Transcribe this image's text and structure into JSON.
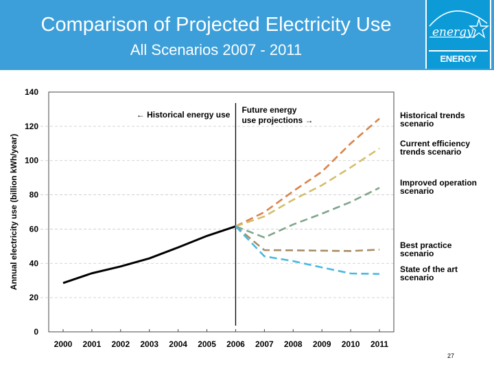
{
  "header": {
    "title": "Comparison of Projected Electricity Use",
    "subtitle": "All Scenarios 2007 - 2011",
    "logo": {
      "script_text": "energy",
      "label": "ENERGY STAR",
      "icon": "energy-star-logo"
    },
    "background_color": "#3d9fd9"
  },
  "page_number": "27",
  "chart_data": {
    "type": "line",
    "title": "",
    "xlabel": "",
    "ylabel": "Annual electricity use (billion kWh/year)",
    "x": [
      2000,
      2001,
      2002,
      2003,
      2004,
      2005,
      2006,
      2007,
      2008,
      2009,
      2010,
      2011
    ],
    "xlim": [
      2000,
      2011
    ],
    "ylim": [
      0,
      140
    ],
    "yticks": [
      0,
      20,
      40,
      60,
      80,
      100,
      120,
      140
    ],
    "xtick_labels": [
      "2000",
      "2001",
      "2002",
      "2003",
      "2004",
      "2005",
      "2006",
      "2007",
      "2008",
      "2009",
      "2010",
      "2011"
    ],
    "grid": "horizontal-dashed",
    "divider_year": 2006,
    "annotations": {
      "historical": "← Historical energy use",
      "future_line1": "Future energy",
      "future_line2": "use projections →"
    },
    "series": [
      {
        "name": "Historical energy use",
        "style": "solid",
        "color": "#000000",
        "x": [
          2000,
          2001,
          2002,
          2003,
          2004,
          2005,
          2006
        ],
        "values": [
          28.5,
          34.2,
          38.2,
          42.9,
          49.3,
          56.0,
          61.6
        ],
        "label_lines": []
      },
      {
        "name": "Historical trends scenario",
        "style": "dashed",
        "color": "#d9834a",
        "x": [
          2006,
          2007,
          2008,
          2009,
          2010,
          2011
        ],
        "values": [
          61.6,
          69.9,
          82.1,
          93.5,
          110.0,
          124.5
        ],
        "label_lines": [
          "Historical trends",
          "scenario"
        ]
      },
      {
        "name": "Current efficiency trends scenario",
        "style": "dashed",
        "color": "#d4bd6a",
        "x": [
          2006,
          2007,
          2008,
          2009,
          2010,
          2011
        ],
        "values": [
          61.6,
          67.4,
          77.1,
          85.6,
          96.0,
          107.1
        ],
        "label_lines": [
          "Current efficiency",
          "trends scenario"
        ]
      },
      {
        "name": "Improved operation scenario",
        "style": "dashed",
        "color": "#7fa58a",
        "x": [
          2006,
          2007,
          2008,
          2009,
          2010,
          2011
        ],
        "values": [
          61.6,
          55.1,
          62.7,
          69.0,
          75.8,
          84.1
        ],
        "label_lines": [
          "Improved operation",
          "scenario"
        ]
      },
      {
        "name": "Best practice scenario",
        "style": "dashed",
        "color": "#a88c64",
        "x": [
          2006,
          2007,
          2008,
          2009,
          2010,
          2011
        ],
        "values": [
          61.6,
          47.7,
          47.6,
          47.4,
          47.2,
          48.0
        ],
        "label_lines": [
          "Best practice",
          "scenario"
        ]
      },
      {
        "name": "State of the art scenario",
        "style": "dashed",
        "color": "#49b8e0",
        "x": [
          2006,
          2007,
          2008,
          2009,
          2010,
          2011
        ],
        "values": [
          61.6,
          44.1,
          41.3,
          37.6,
          34.1,
          33.8
        ],
        "label_lines": [
          "State of the art",
          "scenario"
        ]
      }
    ]
  }
}
